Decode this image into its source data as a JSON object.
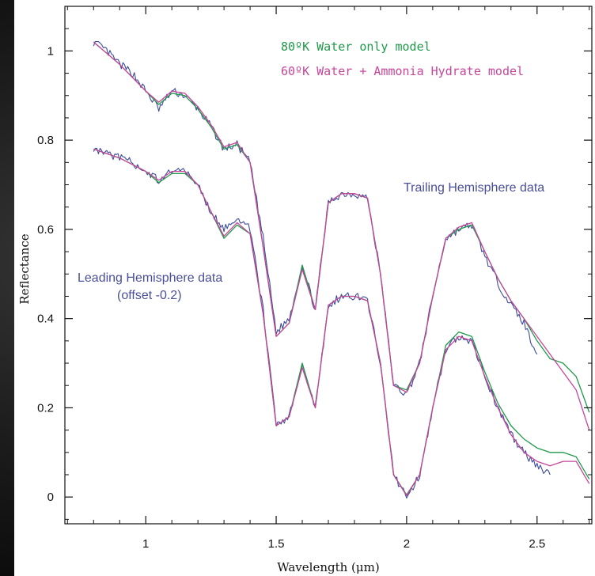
{
  "chart_data": {
    "type": "line",
    "xlabel": "Wavelength (μm)",
    "ylabel": "Reflectance",
    "xlim": [
      0.69,
      2.71
    ],
    "ylim": [
      -0.06,
      1.1
    ],
    "x_ticks": [
      1,
      1.5,
      2,
      2.5
    ],
    "y_ticks": [
      0,
      0.2,
      0.4,
      0.6,
      0.8,
      1
    ],
    "x_tick_labels": [
      "1",
      "1.5",
      "2",
      "2.5"
    ],
    "y_tick_labels": [
      "0",
      "0.2",
      "0.4",
      "0.6",
      "0.8",
      "1"
    ],
    "grid": false,
    "legend_position": "top-right",
    "legend": [
      {
        "label": "80ºK Water only model",
        "color": "#1f9a4a"
      },
      {
        "label": "60ºK Water + Ammonia Hydrate model",
        "color": "#c8459a"
      }
    ],
    "annotations": [
      {
        "text": "Trailing Hemisphere data"
      },
      {
        "text": "Leading Hemisphere data"
      },
      {
        "text": "(offset -0.2)"
      }
    ],
    "series": [
      {
        "group": "Trailing Hemisphere data",
        "kind": "data",
        "color": "#3c4a9c",
        "x": [
          0.8,
          0.85,
          0.9,
          0.95,
          1.0,
          1.05,
          1.1,
          1.15,
          1.2,
          1.25,
          1.3,
          1.35,
          1.4,
          1.45,
          1.5,
          1.55,
          1.6,
          1.65,
          1.7,
          1.75,
          1.8,
          1.85,
          1.9,
          1.95,
          2.0,
          2.05,
          2.1,
          2.15,
          2.2,
          2.25,
          2.3,
          2.35,
          2.4,
          2.45,
          2.5
        ],
        "y": [
          1.02,
          1.0,
          0.97,
          0.95,
          0.91,
          0.87,
          0.91,
          0.9,
          0.87,
          0.83,
          0.78,
          0.79,
          0.75,
          0.58,
          0.37,
          0.4,
          0.52,
          0.42,
          0.66,
          0.68,
          0.68,
          0.67,
          0.5,
          0.25,
          0.23,
          0.3,
          0.45,
          0.58,
          0.6,
          0.61,
          0.54,
          0.48,
          0.43,
          0.39,
          0.32
        ]
      },
      {
        "group": "Trailing Hemisphere data",
        "kind": "80ºK Water only model",
        "color": "#1f9a4a",
        "x": [
          0.8,
          0.9,
          1.0,
          1.05,
          1.1,
          1.15,
          1.2,
          1.25,
          1.3,
          1.35,
          1.4,
          1.45,
          1.5,
          1.55,
          1.6,
          1.65,
          1.7,
          1.75,
          1.8,
          1.85,
          1.9,
          1.95,
          2.0,
          2.05,
          2.1,
          2.15,
          2.2,
          2.25,
          2.3,
          2.35,
          2.4,
          2.45,
          2.5,
          2.55,
          2.6,
          2.65,
          2.7
        ],
        "y": [
          1.02,
          0.97,
          0.91,
          0.88,
          0.905,
          0.9,
          0.87,
          0.83,
          0.78,
          0.79,
          0.75,
          0.56,
          0.36,
          0.39,
          0.52,
          0.42,
          0.66,
          0.68,
          0.68,
          0.67,
          0.5,
          0.25,
          0.24,
          0.3,
          0.45,
          0.58,
          0.6,
          0.61,
          0.55,
          0.49,
          0.44,
          0.4,
          0.35,
          0.31,
          0.3,
          0.27,
          0.19
        ]
      },
      {
        "group": "Trailing Hemisphere data",
        "kind": "60ºK Water + Ammonia Hydrate model",
        "color": "#c8459a",
        "x": [
          0.8,
          0.9,
          1.0,
          1.05,
          1.1,
          1.15,
          1.2,
          1.25,
          1.3,
          1.35,
          1.4,
          1.45,
          1.5,
          1.55,
          1.6,
          1.65,
          1.7,
          1.75,
          1.8,
          1.85,
          1.9,
          1.95,
          2.0,
          2.05,
          2.1,
          2.15,
          2.2,
          2.25,
          2.3,
          2.35,
          2.4,
          2.45,
          2.5,
          2.55,
          2.6,
          2.65,
          2.7
        ],
        "y": [
          1.02,
          0.97,
          0.91,
          0.885,
          0.91,
          0.905,
          0.875,
          0.835,
          0.785,
          0.795,
          0.75,
          0.56,
          0.36,
          0.39,
          0.51,
          0.42,
          0.66,
          0.68,
          0.68,
          0.67,
          0.5,
          0.25,
          0.235,
          0.3,
          0.45,
          0.58,
          0.605,
          0.615,
          0.55,
          0.49,
          0.44,
          0.4,
          0.36,
          0.32,
          0.28,
          0.24,
          0.15
        ]
      },
      {
        "group": "Leading Hemisphere data (offset -0.2)",
        "kind": "data",
        "color": "#3c4a9c",
        "x": [
          0.8,
          0.85,
          0.9,
          0.95,
          1.0,
          1.05,
          1.1,
          1.15,
          1.2,
          1.25,
          1.3,
          1.35,
          1.4,
          1.45,
          1.5,
          1.55,
          1.6,
          1.65,
          1.7,
          1.75,
          1.8,
          1.85,
          1.9,
          1.95,
          2.0,
          2.05,
          2.1,
          2.15,
          2.2,
          2.25,
          2.3,
          2.35,
          2.4,
          2.45,
          2.5,
          2.55
        ],
        "y": [
          0.78,
          0.77,
          0.76,
          0.75,
          0.73,
          0.71,
          0.73,
          0.73,
          0.7,
          0.64,
          0.6,
          0.63,
          0.6,
          0.42,
          0.16,
          0.18,
          0.29,
          0.2,
          0.43,
          0.45,
          0.45,
          0.44,
          0.3,
          0.05,
          0.0,
          0.05,
          0.2,
          0.33,
          0.36,
          0.35,
          0.27,
          0.2,
          0.14,
          0.1,
          0.07,
          0.05
        ]
      },
      {
        "group": "Leading Hemisphere data (offset -0.2)",
        "kind": "80ºK Water only model",
        "color": "#1f9a4a",
        "x": [
          0.8,
          0.9,
          1.0,
          1.05,
          1.1,
          1.15,
          1.2,
          1.25,
          1.3,
          1.35,
          1.4,
          1.45,
          1.5,
          1.55,
          1.6,
          1.65,
          1.7,
          1.75,
          1.8,
          1.85,
          1.9,
          1.95,
          2.0,
          2.05,
          2.1,
          2.15,
          2.2,
          2.25,
          2.3,
          2.35,
          2.4,
          2.45,
          2.5,
          2.55,
          2.6,
          2.65,
          2.7
        ],
        "y": [
          0.78,
          0.76,
          0.73,
          0.705,
          0.725,
          0.725,
          0.7,
          0.64,
          0.58,
          0.61,
          0.59,
          0.41,
          0.16,
          0.18,
          0.3,
          0.2,
          0.43,
          0.45,
          0.45,
          0.44,
          0.3,
          0.05,
          0.005,
          0.05,
          0.2,
          0.34,
          0.37,
          0.36,
          0.28,
          0.21,
          0.16,
          0.13,
          0.11,
          0.1,
          0.1,
          0.09,
          0.04
        ]
      },
      {
        "group": "Leading Hemisphere data (offset -0.2)",
        "kind": "60ºK Water + Ammonia Hydrate model",
        "color": "#c8459a",
        "x": [
          0.8,
          0.9,
          1.0,
          1.05,
          1.1,
          1.15,
          1.2,
          1.25,
          1.3,
          1.35,
          1.4,
          1.45,
          1.5,
          1.55,
          1.6,
          1.65,
          1.7,
          1.75,
          1.8,
          1.85,
          1.9,
          1.95,
          2.0,
          2.05,
          2.1,
          2.15,
          2.2,
          2.25,
          2.3,
          2.35,
          2.4,
          2.45,
          2.5,
          2.55,
          2.6,
          2.65,
          2.7
        ],
        "y": [
          0.78,
          0.76,
          0.73,
          0.71,
          0.73,
          0.73,
          0.7,
          0.64,
          0.585,
          0.615,
          0.59,
          0.41,
          0.16,
          0.18,
          0.29,
          0.2,
          0.43,
          0.45,
          0.45,
          0.44,
          0.3,
          0.05,
          0.003,
          0.05,
          0.2,
          0.33,
          0.36,
          0.35,
          0.27,
          0.2,
          0.14,
          0.1,
          0.08,
          0.07,
          0.08,
          0.08,
          0.03
        ]
      }
    ]
  }
}
